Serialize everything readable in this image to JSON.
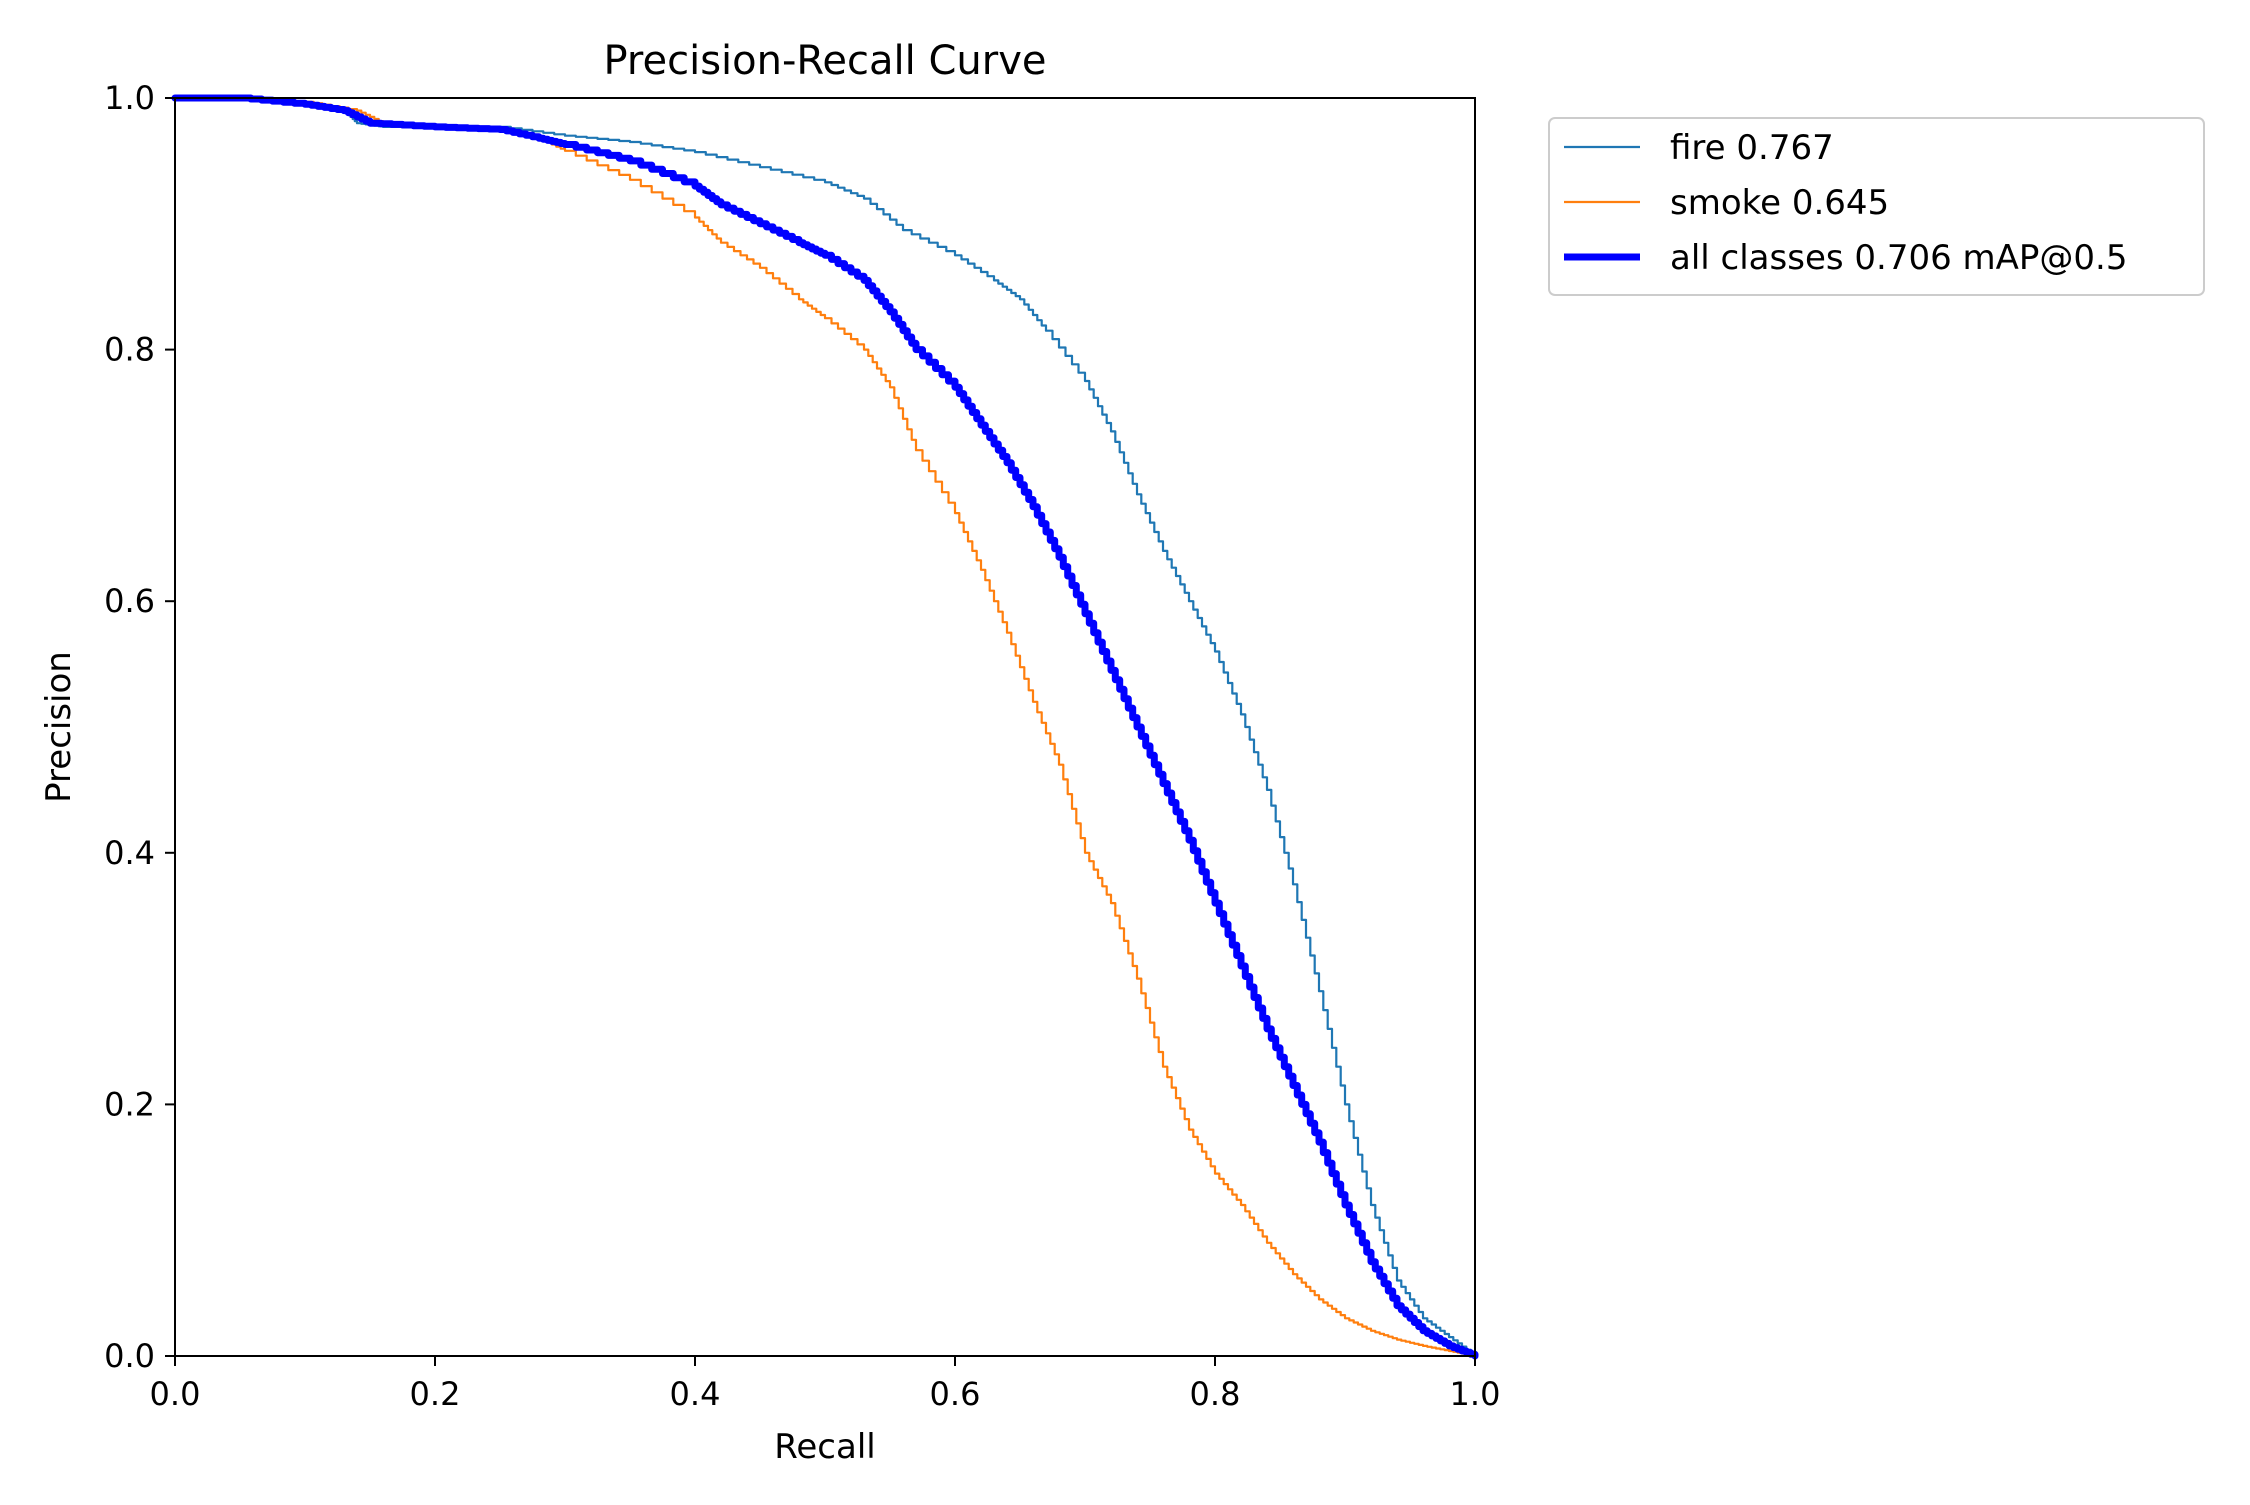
{
  "chart_data": {
    "type": "line",
    "title": "Precision-Recall Curve",
    "xlabel": "Recall",
    "ylabel": "Precision",
    "xlim": [
      0.0,
      1.0
    ],
    "ylim": [
      0.0,
      1.0
    ],
    "xticks": [
      "0.0",
      "0.2",
      "0.4",
      "0.6",
      "0.8",
      "1.0"
    ],
    "yticks": [
      "0.0",
      "0.2",
      "0.4",
      "0.6",
      "0.8",
      "1.0"
    ],
    "grid": false,
    "legend_position": "outside-top-right",
    "series": [
      {
        "name": "fire 0.767",
        "color": "#1f77b4",
        "line": "thin",
        "points": [
          [
            0.0,
            1.0
          ],
          [
            0.05,
            1.0
          ],
          [
            0.1,
            0.995
          ],
          [
            0.13,
            0.99
          ],
          [
            0.14,
            0.98
          ],
          [
            0.16,
            0.977
          ],
          [
            0.2,
            0.977
          ],
          [
            0.25,
            0.977
          ],
          [
            0.3,
            0.97
          ],
          [
            0.35,
            0.965
          ],
          [
            0.4,
            0.957
          ],
          [
            0.45,
            0.945
          ],
          [
            0.5,
            0.933
          ],
          [
            0.53,
            0.92
          ],
          [
            0.56,
            0.895
          ],
          [
            0.6,
            0.875
          ],
          [
            0.63,
            0.855
          ],
          [
            0.65,
            0.84
          ],
          [
            0.67,
            0.815
          ],
          [
            0.7,
            0.775
          ],
          [
            0.72,
            0.735
          ],
          [
            0.74,
            0.685
          ],
          [
            0.76,
            0.64
          ],
          [
            0.78,
            0.6
          ],
          [
            0.8,
            0.56
          ],
          [
            0.82,
            0.51
          ],
          [
            0.84,
            0.45
          ],
          [
            0.86,
            0.375
          ],
          [
            0.88,
            0.29
          ],
          [
            0.9,
            0.2
          ],
          [
            0.92,
            0.12
          ],
          [
            0.94,
            0.06
          ],
          [
            0.96,
            0.03
          ],
          [
            0.98,
            0.015
          ],
          [
            1.0,
            0.0
          ]
        ]
      },
      {
        "name": "smoke 0.645",
        "color": "#ff7f0e",
        "line": "thin",
        "points": [
          [
            0.0,
            1.0
          ],
          [
            0.05,
            1.0
          ],
          [
            0.1,
            0.997
          ],
          [
            0.14,
            0.99
          ],
          [
            0.16,
            0.98
          ],
          [
            0.2,
            0.977
          ],
          [
            0.25,
            0.975
          ],
          [
            0.28,
            0.968
          ],
          [
            0.3,
            0.958
          ],
          [
            0.35,
            0.935
          ],
          [
            0.4,
            0.905
          ],
          [
            0.42,
            0.885
          ],
          [
            0.45,
            0.865
          ],
          [
            0.48,
            0.84
          ],
          [
            0.5,
            0.825
          ],
          [
            0.53,
            0.8
          ],
          [
            0.55,
            0.77
          ],
          [
            0.57,
            0.72
          ],
          [
            0.6,
            0.67
          ],
          [
            0.62,
            0.625
          ],
          [
            0.64,
            0.575
          ],
          [
            0.66,
            0.52
          ],
          [
            0.68,
            0.47
          ],
          [
            0.7,
            0.4
          ],
          [
            0.72,
            0.36
          ],
          [
            0.74,
            0.3
          ],
          [
            0.76,
            0.23
          ],
          [
            0.78,
            0.18
          ],
          [
            0.8,
            0.145
          ],
          [
            0.82,
            0.12
          ],
          [
            0.84,
            0.09
          ],
          [
            0.86,
            0.065
          ],
          [
            0.88,
            0.045
          ],
          [
            0.9,
            0.03
          ],
          [
            0.92,
            0.02
          ],
          [
            0.94,
            0.013
          ],
          [
            0.96,
            0.008
          ],
          [
            0.98,
            0.004
          ],
          [
            1.0,
            0.0
          ]
        ]
      },
      {
        "name": "all classes 0.706 mAP@0.5",
        "color": "#0000ff",
        "line": "thick",
        "points": [
          [
            0.0,
            1.0
          ],
          [
            0.05,
            1.0
          ],
          [
            0.1,
            0.995
          ],
          [
            0.13,
            0.99
          ],
          [
            0.15,
            0.98
          ],
          [
            0.2,
            0.977
          ],
          [
            0.25,
            0.975
          ],
          [
            0.28,
            0.968
          ],
          [
            0.3,
            0.963
          ],
          [
            0.35,
            0.95
          ],
          [
            0.4,
            0.93
          ],
          [
            0.42,
            0.915
          ],
          [
            0.45,
            0.9
          ],
          [
            0.48,
            0.885
          ],
          [
            0.5,
            0.875
          ],
          [
            0.53,
            0.855
          ],
          [
            0.55,
            0.83
          ],
          [
            0.57,
            0.8
          ],
          [
            0.6,
            0.77
          ],
          [
            0.62,
            0.74
          ],
          [
            0.64,
            0.71
          ],
          [
            0.66,
            0.675
          ],
          [
            0.68,
            0.635
          ],
          [
            0.7,
            0.59
          ],
          [
            0.72,
            0.545
          ],
          [
            0.74,
            0.5
          ],
          [
            0.76,
            0.455
          ],
          [
            0.78,
            0.41
          ],
          [
            0.8,
            0.36
          ],
          [
            0.82,
            0.31
          ],
          [
            0.84,
            0.26
          ],
          [
            0.86,
            0.215
          ],
          [
            0.88,
            0.17
          ],
          [
            0.9,
            0.12
          ],
          [
            0.92,
            0.075
          ],
          [
            0.94,
            0.04
          ],
          [
            0.96,
            0.02
          ],
          [
            0.98,
            0.008
          ],
          [
            1.0,
            0.0
          ]
        ]
      }
    ]
  }
}
